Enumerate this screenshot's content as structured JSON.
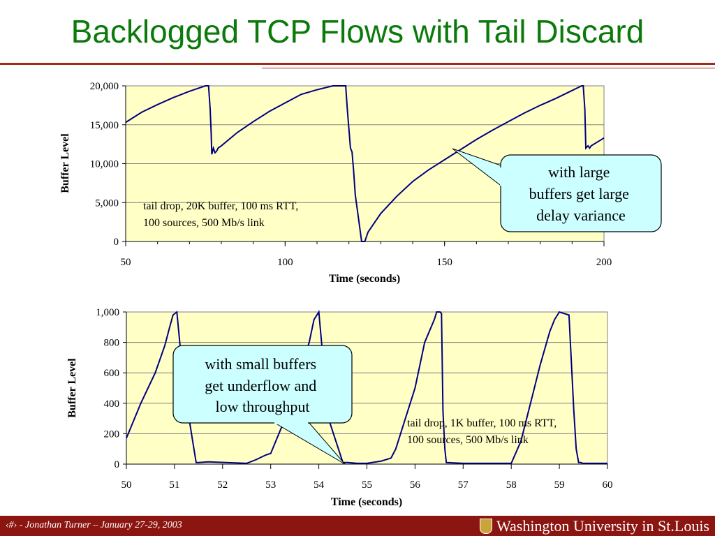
{
  "slide": {
    "title": "Backlogged TCP Flows with Tail Discard",
    "footer": "‹#› - Jonathan Turner – January 27-29, 2003",
    "logo_text": "Washington University in St.Louis"
  },
  "colors": {
    "title": "#0b7a0b",
    "rule": "#a52a1a",
    "plot_bg": "#ffffc6",
    "line": "#000080",
    "callout_bg": "#ccffff",
    "footer_bg": "#8b1510"
  },
  "chart_data": [
    {
      "type": "line",
      "xlabel": "Time (seconds)",
      "ylabel": "Buffer Level",
      "xlim": [
        50,
        200
      ],
      "ylim": [
        0,
        20000
      ],
      "x_ticks": [
        50,
        100,
        150,
        200
      ],
      "x_tick_labels": [
        "50",
        "100",
        "150",
        "200"
      ],
      "y_ticks": [
        0,
        5000,
        10000,
        15000,
        20000
      ],
      "y_tick_labels": [
        "0",
        "5,000",
        "10,000",
        "15,000",
        "20,000"
      ],
      "grid": true,
      "annotation": [
        "tail drop, 20K buffer, 100 ms RTT,",
        "100 sources, 500 Mb/s link"
      ],
      "callout": [
        "with large",
        "buffers get large",
        "delay variance"
      ],
      "series": [
        {
          "x": [
            50,
            55,
            60,
            65,
            70,
            75,
            76,
            76.5,
            76.8,
            77,
            77.5,
            78,
            78.5,
            79,
            80,
            85,
            90,
            95,
            100,
            105,
            110,
            115,
            119,
            119.5,
            120.5,
            121,
            121.5,
            122,
            123,
            124,
            125,
            126,
            128,
            130,
            135,
            140,
            145,
            150,
            155,
            160,
            165,
            170,
            175,
            180,
            185,
            190,
            193,
            193.5,
            194,
            194.3,
            195,
            195.5,
            196,
            198,
            200
          ],
          "y": [
            15300,
            16600,
            17600,
            18500,
            19300,
            20000,
            20000,
            17000,
            14000,
            11200,
            12000,
            11400,
            11600,
            12000,
            12300,
            14000,
            15400,
            16700,
            17800,
            18900,
            19500,
            20000,
            20000,
            17000,
            12000,
            11500,
            9000,
            6000,
            3000,
            0,
            0,
            1200,
            2400,
            3600,
            5800,
            7700,
            9200,
            10500,
            11800,
            13100,
            14300,
            15400,
            16500,
            17500,
            18400,
            19400,
            20000,
            20000,
            17000,
            12000,
            12300,
            12000,
            12300,
            12800,
            13300
          ]
        }
      ]
    },
    {
      "type": "line",
      "xlabel": "Time (seconds)",
      "ylabel": "Buffer Level",
      "xlim": [
        50,
        60
      ],
      "ylim": [
        0,
        1000
      ],
      "x_ticks": [
        50,
        51,
        52,
        53,
        54,
        55,
        56,
        57,
        58,
        59,
        60
      ],
      "x_tick_labels": [
        "50",
        "51",
        "52",
        "53",
        "54",
        "55",
        "56",
        "57",
        "58",
        "59",
        "60"
      ],
      "y_ticks": [
        0,
        200,
        400,
        600,
        800,
        1000
      ],
      "y_tick_labels": [
        "0",
        "200",
        "400",
        "600",
        "800",
        "1,000"
      ],
      "grid": true,
      "annotation": [
        "tail drop, 1K buffer, 100 ms RTT,",
        "100 sources, 500 Mb/s link"
      ],
      "callout": [
        "with small buffers",
        "get underflow and",
        "low throughput"
      ],
      "series": [
        {
          "x": [
            50,
            50.3,
            50.6,
            50.8,
            50.9,
            50.97,
            51.05,
            51.2,
            51.45,
            51.5,
            51.7,
            52.5,
            52.7,
            52.9,
            53,
            53.3,
            53.6,
            53.8,
            53.9,
            54,
            54.2,
            54.5,
            54.55,
            54.6,
            54.8,
            55,
            55.3,
            55.5,
            55.6,
            55.8,
            56,
            56.2,
            56.4,
            56.45,
            56.52,
            56.55,
            56.58,
            56.62,
            56.65,
            57,
            57.5,
            58,
            58.2,
            58.4,
            58.6,
            58.8,
            58.9,
            59,
            59.2,
            59.3,
            59.35,
            59.4,
            59.45,
            59.48,
            60
          ],
          "y": [
            170,
            400,
            600,
            780,
            900,
            980,
            1000,
            500,
            10,
            10,
            15,
            5,
            30,
            60,
            70,
            300,
            600,
            800,
            950,
            1000,
            300,
            10,
            10,
            10,
            5,
            5,
            20,
            40,
            100,
            300,
            500,
            800,
            950,
            1000,
            1000,
            990,
            350,
            100,
            10,
            5,
            5,
            5,
            150,
            400,
            650,
            870,
            950,
            1000,
            980,
            350,
            100,
            10,
            10,
            5,
            5
          ]
        }
      ]
    }
  ]
}
